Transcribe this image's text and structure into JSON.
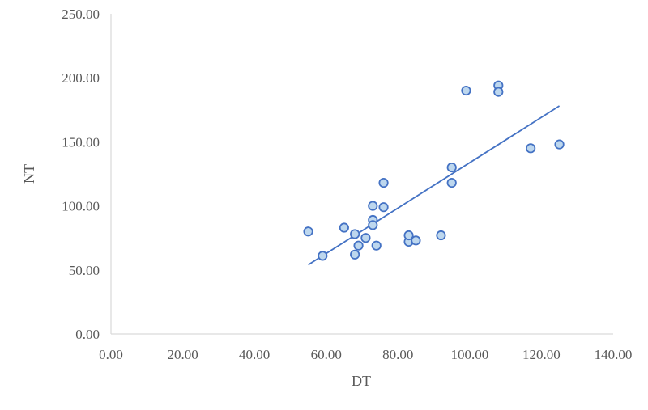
{
  "chart_data": {
    "type": "scatter",
    "title": "",
    "xlabel": "DT",
    "ylabel": "NT",
    "xlim": [
      0,
      140
    ],
    "ylim": [
      0,
      250
    ],
    "x_ticks": [
      "0.00",
      "20.00",
      "40.00",
      "60.00",
      "80.00",
      "100.00",
      "120.00",
      "140.00"
    ],
    "y_ticks": [
      "0.00",
      "50.00",
      "100.00",
      "150.00",
      "200.00",
      "250.00"
    ],
    "grid": false,
    "legend": "none",
    "marker_color": "#4472C4",
    "marker_fill": "#BDD7EE",
    "trendline_color": "#4472C4",
    "points": [
      {
        "x": 55,
        "y": 80
      },
      {
        "x": 59,
        "y": 61
      },
      {
        "x": 65,
        "y": 83
      },
      {
        "x": 68,
        "y": 62
      },
      {
        "x": 68,
        "y": 78
      },
      {
        "x": 69,
        "y": 69
      },
      {
        "x": 71,
        "y": 75
      },
      {
        "x": 73,
        "y": 100
      },
      {
        "x": 73,
        "y": 89
      },
      {
        "x": 73,
        "y": 85
      },
      {
        "x": 74,
        "y": 69
      },
      {
        "x": 76,
        "y": 118
      },
      {
        "x": 76,
        "y": 99
      },
      {
        "x": 83,
        "y": 72
      },
      {
        "x": 83,
        "y": 77
      },
      {
        "x": 85,
        "y": 73
      },
      {
        "x": 92,
        "y": 77
      },
      {
        "x": 95,
        "y": 130
      },
      {
        "x": 95,
        "y": 118
      },
      {
        "x": 99,
        "y": 190
      },
      {
        "x": 108,
        "y": 194
      },
      {
        "x": 108,
        "y": 189
      },
      {
        "x": 117,
        "y": 145
      },
      {
        "x": 125,
        "y": 148
      }
    ],
    "trendline": {
      "x": [
        55,
        125
      ],
      "y": [
        54,
        178
      ]
    }
  }
}
